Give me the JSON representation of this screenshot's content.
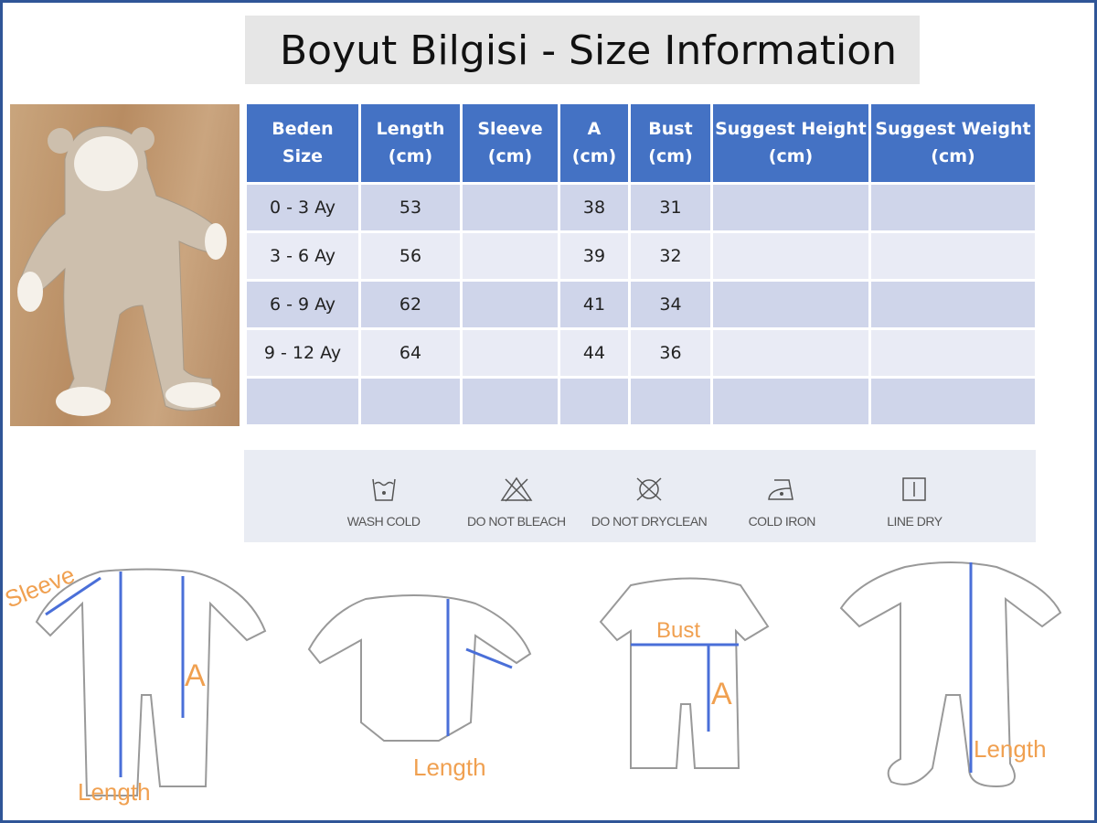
{
  "title": "Boyut Bilgisi - Size Information",
  "table": {
    "headers": [
      [
        "Beden",
        "Size"
      ],
      [
        "Length",
        "(cm)"
      ],
      [
        "Sleeve",
        "(cm)"
      ],
      [
        "A",
        "(cm)"
      ],
      [
        "Bust",
        "(cm)"
      ],
      [
        "Suggest Height",
        "(cm)"
      ],
      [
        "Suggest Weight",
        "(cm)"
      ]
    ],
    "rows": [
      [
        "0 - 3 Ay",
        "53",
        "",
        "38",
        "31",
        "",
        ""
      ],
      [
        "3 - 6 Ay",
        "56",
        "",
        "39",
        "32",
        "",
        ""
      ],
      [
        "6 - 9 Ay",
        "62",
        "",
        "41",
        "34",
        "",
        ""
      ],
      [
        "9 - 12 Ay",
        "64",
        "",
        "44",
        "36",
        "",
        ""
      ],
      [
        "",
        "",
        "",
        "",
        "",
        "",
        ""
      ]
    ]
  },
  "care": [
    {
      "icon": "wash-cold-icon",
      "label": "WASH COLD"
    },
    {
      "icon": "do-not-bleach-icon",
      "label": "DO NOT BLEACH"
    },
    {
      "icon": "do-not-dryclean-icon",
      "label": "DO NOT DRYCLEAN"
    },
    {
      "icon": "cold-iron-icon",
      "label": "COLD IRON"
    },
    {
      "icon": "line-dry-icon",
      "label": "LINE DRY"
    }
  ],
  "diagram_labels": {
    "sleeve": "Sleeve",
    "a1": "A",
    "length1": "Length",
    "length2": "Length",
    "bust": "Bust",
    "a2": "A",
    "length3": "Length"
  },
  "colors": {
    "header": "#4472c4",
    "row_odd": "#cfd5ea",
    "row_even": "#e9ebf5",
    "frame": "#2f5597",
    "measure": "#4a6fd8",
    "label": "#f0a050"
  }
}
